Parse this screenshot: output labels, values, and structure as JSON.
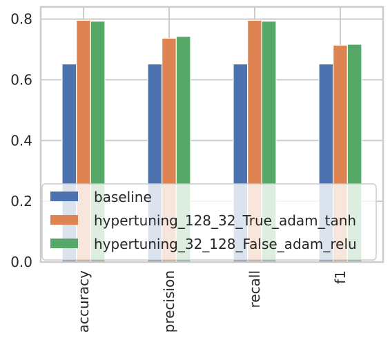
{
  "chart_data": {
    "type": "bar",
    "title": "",
    "xlabel": "",
    "ylabel": "",
    "categories": [
      "accuracy",
      "precision",
      "recall",
      "f1"
    ],
    "series": [
      {
        "name": "baseline",
        "color": "#4c72b0",
        "values": [
          0.652,
          0.652,
          0.652,
          0.652
        ]
      },
      {
        "name": "hypertuning_128_32_True_adam_tanh",
        "color": "#dd8452",
        "values": [
          0.796,
          0.737,
          0.796,
          0.714
        ]
      },
      {
        "name": "hypertuning_32_128_False_adam_relu",
        "color": "#55a868",
        "values": [
          0.793,
          0.743,
          0.793,
          0.717
        ]
      }
    ],
    "ylim": [
      0,
      0.84
    ],
    "yticks": [
      0.0,
      0.2,
      0.4,
      0.6,
      0.8
    ],
    "ytick_labels": [
      "0.0",
      "0.2",
      "0.4",
      "0.6",
      "0.8"
    ],
    "grid": true,
    "legend_position": "lower-left",
    "background_color": "#ffffff",
    "grid_color": "#cccccc"
  }
}
